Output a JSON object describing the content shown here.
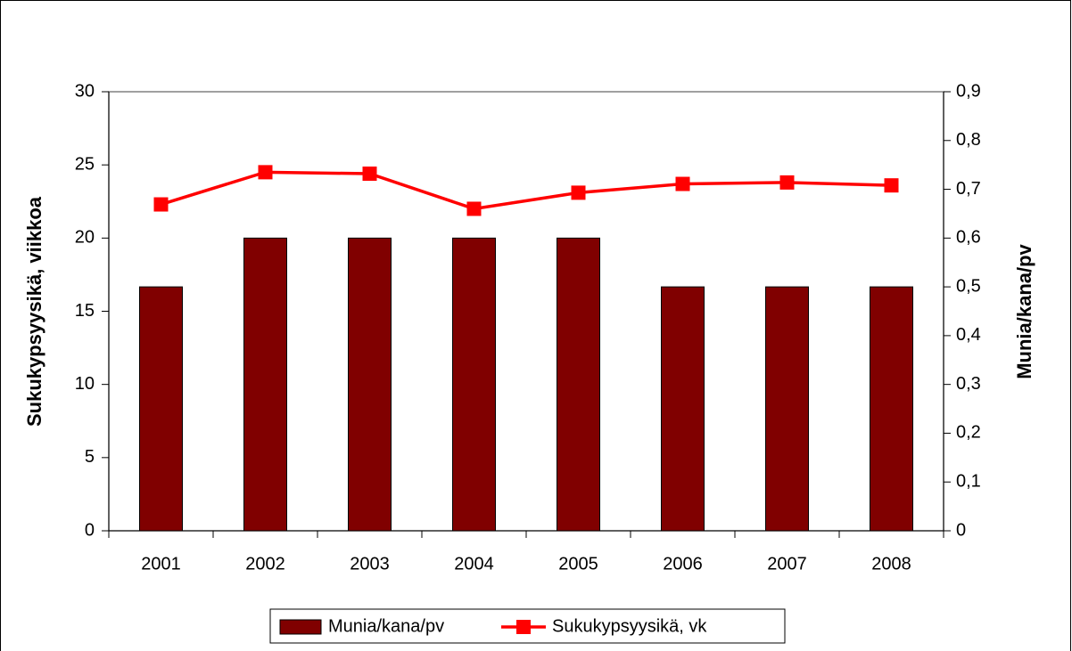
{
  "chart_data": {
    "type": "bar",
    "categories": [
      "2001",
      "2002",
      "2003",
      "2004",
      "2005",
      "2006",
      "2007",
      "2008"
    ],
    "y_label": "Sukukypsyysikä, viikkoa",
    "y2_label": "Munia/kana/pv",
    "ylim": [
      0,
      30
    ],
    "yticks": [
      0,
      5,
      10,
      15,
      20,
      25,
      30
    ],
    "y2lim": [
      0,
      0.9
    ],
    "y2ticks": [
      0,
      {
        "value": 0.1,
        "label": "0,1"
      },
      {
        "value": 0.2,
        "label": "0,2"
      },
      {
        "value": 0.3,
        "label": "0,3"
      },
      {
        "value": 0.4,
        "label": "0,4"
      },
      {
        "value": 0.5,
        "label": "0,5"
      },
      {
        "value": 0.6,
        "label": "0,6"
      },
      {
        "value": 0.7,
        "label": "0,7"
      },
      {
        "value": 0.8,
        "label": "0,8"
      },
      {
        "value": 0.9,
        "label": "0,9"
      }
    ],
    "series": [
      {
        "name": "Munia/kana/pv",
        "type": "bar",
        "axis": "y2",
        "color": "#800000",
        "values": [
          0.5,
          0.6,
          0.6,
          0.6,
          0.6,
          0.5,
          0.5,
          0.5
        ]
      },
      {
        "name": "Sukukypsyysikä, vk",
        "type": "line",
        "color": "#ff0000",
        "values": [
          22.3,
          24.5,
          24.4,
          22.0,
          23.1,
          23.7,
          23.8,
          23.6
        ]
      }
    ],
    "grid": false,
    "legend": "bottom"
  }
}
